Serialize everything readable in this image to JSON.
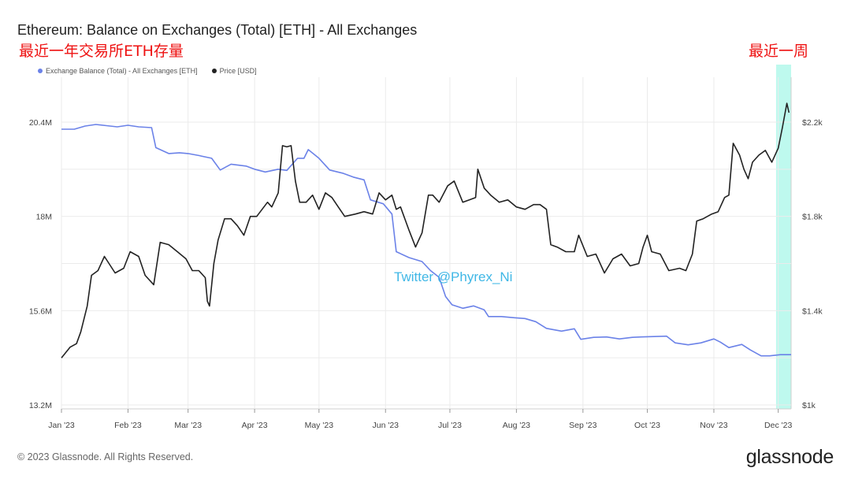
{
  "title": "Ethereum: Balance on Exchanges (Total) [ETH] - All Exchanges",
  "annotation_main": "最近一年交易所ETH存量",
  "annotation_week": "最近一周",
  "watermark": "Twitter @Phyrex_Ni",
  "footer": "© 2023 Glassnode. All Rights Reserved.",
  "logo": "glassnode",
  "colors": {
    "balance": "#6b82e8",
    "price": "#222222",
    "highlight": "#aef7ea"
  },
  "chart_data": {
    "type": "line",
    "title": "Ethereum: Balance on Exchanges (Total) [ETH] - All Exchanges",
    "x_ticks": [
      "Jan '23",
      "Feb '23",
      "Mar '23",
      "Apr '23",
      "May '23",
      "Jun '23",
      "Jul '23",
      "Aug '23",
      "Sep '23",
      "Oct '23",
      "Nov '23",
      "Dec '23"
    ],
    "left_axis": {
      "ticks": [
        "13.2M",
        "15.6M",
        "18M",
        "20.4M"
      ],
      "values": [
        13.2,
        15.6,
        18.0,
        20.4
      ],
      "ylim": [
        13.2,
        20.4
      ]
    },
    "right_axis": {
      "ticks": [
        "$1k",
        "$1.4k",
        "$1.8k",
        "$2.2k"
      ],
      "values": [
        1000,
        1400,
        1800,
        2200
      ],
      "ylim": [
        1000,
        2200
      ]
    },
    "legend": [
      "Exchange Balance (Total) - All Exchanges [ETH]",
      "Price [USD]"
    ],
    "grid": true,
    "highlight_range": [
      "2023-11-30",
      "2023-12-07"
    ],
    "series": [
      {
        "name": "Exchange Balance (Total) - All Exchanges [ETH]",
        "axis": "left",
        "unit": "M ETH",
        "points": [
          [
            "2023-01-01",
            20.22
          ],
          [
            "2023-01-07",
            20.22
          ],
          [
            "2023-01-12",
            20.3
          ],
          [
            "2023-01-17",
            20.34
          ],
          [
            "2023-01-22",
            20.31
          ],
          [
            "2023-01-27",
            20.28
          ],
          [
            "2023-02-01",
            20.32
          ],
          [
            "2023-02-06",
            20.28
          ],
          [
            "2023-02-12",
            20.26
          ],
          [
            "2023-02-14",
            19.75
          ],
          [
            "2023-02-20",
            19.6
          ],
          [
            "2023-02-25",
            19.62
          ],
          [
            "2023-03-01",
            19.6
          ],
          [
            "2023-03-06",
            19.55
          ],
          [
            "2023-03-12",
            19.48
          ],
          [
            "2023-03-16",
            19.18
          ],
          [
            "2023-03-21",
            19.33
          ],
          [
            "2023-03-28",
            19.28
          ],
          [
            "2023-04-01",
            19.2
          ],
          [
            "2023-04-06",
            19.13
          ],
          [
            "2023-04-12",
            19.2
          ],
          [
            "2023-04-16",
            19.17
          ],
          [
            "2023-04-21",
            19.48
          ],
          [
            "2023-04-24",
            19.48
          ],
          [
            "2023-04-26",
            19.7
          ],
          [
            "2023-05-01",
            19.48
          ],
          [
            "2023-05-06",
            19.18
          ],
          [
            "2023-05-12",
            19.1
          ],
          [
            "2023-05-17",
            19.0
          ],
          [
            "2023-05-22",
            18.93
          ],
          [
            "2023-05-25",
            18.42
          ],
          [
            "2023-05-31",
            18.32
          ],
          [
            "2023-06-04",
            18.06
          ],
          [
            "2023-06-06",
            17.1
          ],
          [
            "2023-06-12",
            16.95
          ],
          [
            "2023-06-18",
            16.85
          ],
          [
            "2023-06-22",
            16.62
          ],
          [
            "2023-06-26",
            16.45
          ],
          [
            "2023-06-29",
            15.96
          ],
          [
            "2023-07-02",
            15.75
          ],
          [
            "2023-07-07",
            15.66
          ],
          [
            "2023-07-12",
            15.72
          ],
          [
            "2023-07-17",
            15.62
          ],
          [
            "2023-07-19",
            15.45
          ],
          [
            "2023-07-25",
            15.45
          ],
          [
            "2023-07-31",
            15.42
          ],
          [
            "2023-08-05",
            15.4
          ],
          [
            "2023-08-10",
            15.32
          ],
          [
            "2023-08-15",
            15.15
          ],
          [
            "2023-08-22",
            15.08
          ],
          [
            "2023-08-28",
            15.14
          ],
          [
            "2023-08-31",
            14.87
          ],
          [
            "2023-09-06",
            14.92
          ],
          [
            "2023-09-12",
            14.93
          ],
          [
            "2023-09-18",
            14.88
          ],
          [
            "2023-09-24",
            14.92
          ],
          [
            "2023-09-28",
            14.93
          ],
          [
            "2023-10-04",
            14.94
          ],
          [
            "2023-10-10",
            14.95
          ],
          [
            "2023-10-14",
            14.78
          ],
          [
            "2023-10-20",
            14.73
          ],
          [
            "2023-10-26",
            14.78
          ],
          [
            "2023-11-01",
            14.88
          ],
          [
            "2023-11-04",
            14.8
          ],
          [
            "2023-11-08",
            14.66
          ],
          [
            "2023-11-14",
            14.74
          ],
          [
            "2023-11-18",
            14.6
          ],
          [
            "2023-11-23",
            14.45
          ],
          [
            "2023-11-27",
            14.45
          ],
          [
            "2023-12-02",
            14.48
          ],
          [
            "2023-12-07",
            14.48
          ]
        ]
      },
      {
        "name": "Price [USD]",
        "axis": "right",
        "unit": "USD",
        "points": [
          [
            "2023-01-01",
            1200
          ],
          [
            "2023-01-05",
            1245
          ],
          [
            "2023-01-08",
            1260
          ],
          [
            "2023-01-10",
            1310
          ],
          [
            "2023-01-13",
            1420
          ],
          [
            "2023-01-15",
            1550
          ],
          [
            "2023-01-18",
            1570
          ],
          [
            "2023-01-21",
            1630
          ],
          [
            "2023-01-26",
            1560
          ],
          [
            "2023-01-30",
            1580
          ],
          [
            "2023-02-02",
            1650
          ],
          [
            "2023-02-06",
            1630
          ],
          [
            "2023-02-09",
            1550
          ],
          [
            "2023-02-13",
            1510
          ],
          [
            "2023-02-16",
            1690
          ],
          [
            "2023-02-20",
            1680
          ],
          [
            "2023-02-24",
            1650
          ],
          [
            "2023-02-28",
            1620
          ],
          [
            "2023-03-03",
            1570
          ],
          [
            "2023-03-06",
            1570
          ],
          [
            "2023-03-09",
            1540
          ],
          [
            "2023-03-10",
            1440
          ],
          [
            "2023-03-11",
            1420
          ],
          [
            "2023-03-13",
            1600
          ],
          [
            "2023-03-15",
            1700
          ],
          [
            "2023-03-18",
            1790
          ],
          [
            "2023-03-21",
            1790
          ],
          [
            "2023-03-24",
            1760
          ],
          [
            "2023-03-27",
            1720
          ],
          [
            "2023-03-30",
            1800
          ],
          [
            "2023-04-02",
            1800
          ],
          [
            "2023-04-07",
            1860
          ],
          [
            "2023-04-09",
            1840
          ],
          [
            "2023-04-12",
            1900
          ],
          [
            "2023-04-14",
            2100
          ],
          [
            "2023-04-16",
            2095
          ],
          [
            "2023-04-18",
            2100
          ],
          [
            "2023-04-20",
            1950
          ],
          [
            "2023-04-22",
            1860
          ],
          [
            "2023-04-25",
            1860
          ],
          [
            "2023-04-28",
            1890
          ],
          [
            "2023-05-01",
            1830
          ],
          [
            "2023-05-04",
            1900
          ],
          [
            "2023-05-07",
            1880
          ],
          [
            "2023-05-10",
            1840
          ],
          [
            "2023-05-13",
            1800
          ],
          [
            "2023-05-18",
            1810
          ],
          [
            "2023-05-22",
            1820
          ],
          [
            "2023-05-26",
            1810
          ],
          [
            "2023-05-29",
            1900
          ],
          [
            "2023-06-01",
            1870
          ],
          [
            "2023-06-04",
            1890
          ],
          [
            "2023-06-06",
            1830
          ],
          [
            "2023-06-08",
            1840
          ],
          [
            "2023-06-12",
            1740
          ],
          [
            "2023-06-15",
            1670
          ],
          [
            "2023-06-18",
            1730
          ],
          [
            "2023-06-21",
            1890
          ],
          [
            "2023-06-23",
            1890
          ],
          [
            "2023-06-26",
            1860
          ],
          [
            "2023-06-30",
            1930
          ],
          [
            "2023-07-03",
            1950
          ],
          [
            "2023-07-07",
            1860
          ],
          [
            "2023-07-10",
            1870
          ],
          [
            "2023-07-13",
            1880
          ],
          [
            "2023-07-14",
            2000
          ],
          [
            "2023-07-17",
            1920
          ],
          [
            "2023-07-20",
            1890
          ],
          [
            "2023-07-24",
            1860
          ],
          [
            "2023-07-28",
            1870
          ],
          [
            "2023-08-01",
            1840
          ],
          [
            "2023-08-05",
            1830
          ],
          [
            "2023-08-09",
            1850
          ],
          [
            "2023-08-12",
            1850
          ],
          [
            "2023-08-15",
            1830
          ],
          [
            "2023-08-17",
            1680
          ],
          [
            "2023-08-20",
            1670
          ],
          [
            "2023-08-24",
            1650
          ],
          [
            "2023-08-28",
            1650
          ],
          [
            "2023-08-30",
            1720
          ],
          [
            "2023-09-03",
            1630
          ],
          [
            "2023-09-07",
            1640
          ],
          [
            "2023-09-11",
            1560
          ],
          [
            "2023-09-15",
            1620
          ],
          [
            "2023-09-19",
            1640
          ],
          [
            "2023-09-23",
            1590
          ],
          [
            "2023-09-27",
            1600
          ],
          [
            "2023-09-29",
            1670
          ],
          [
            "2023-10-01",
            1720
          ],
          [
            "2023-10-03",
            1650
          ],
          [
            "2023-10-07",
            1640
          ],
          [
            "2023-10-11",
            1570
          ],
          [
            "2023-10-16",
            1580
          ],
          [
            "2023-10-19",
            1570
          ],
          [
            "2023-10-22",
            1640
          ],
          [
            "2023-10-24",
            1780
          ],
          [
            "2023-10-27",
            1790
          ],
          [
            "2023-10-31",
            1810
          ],
          [
            "2023-11-03",
            1820
          ],
          [
            "2023-11-06",
            1880
          ],
          [
            "2023-11-08",
            1890
          ],
          [
            "2023-11-10",
            2110
          ],
          [
            "2023-11-13",
            2060
          ],
          [
            "2023-11-15",
            2000
          ],
          [
            "2023-11-17",
            1960
          ],
          [
            "2023-11-19",
            2030
          ],
          [
            "2023-11-22",
            2060
          ],
          [
            "2023-11-25",
            2080
          ],
          [
            "2023-11-28",
            2030
          ],
          [
            "2023-12-01",
            2090
          ],
          [
            "2023-12-03",
            2180
          ],
          [
            "2023-12-05",
            2280
          ],
          [
            "2023-12-06",
            2240
          ]
        ]
      }
    ]
  }
}
